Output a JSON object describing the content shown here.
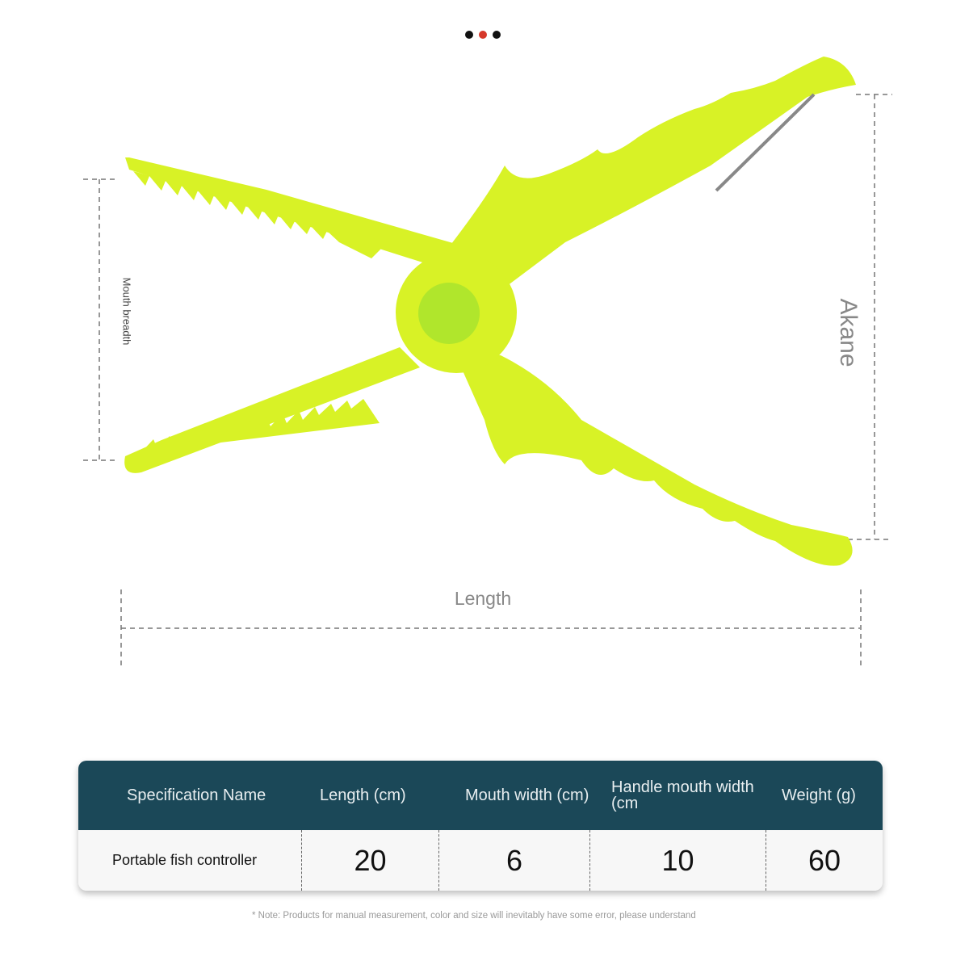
{
  "carousel": {
    "dots": 3,
    "active_index": 1,
    "active_color": "#d6382a"
  },
  "product": {
    "color": "#d8f226",
    "center_color": "#9be02a"
  },
  "dimensions": {
    "mouth_label": "Mouth breadth",
    "right_label": "Akane",
    "length_label": "Length"
  },
  "table": {
    "header_color": "#1b4858",
    "headers": [
      "Specification Name",
      "Length (cm)",
      "Mouth width (cm)",
      "Handle mouth width (cm",
      "Weight (g)"
    ],
    "rows": [
      [
        "Portable fish controller",
        "20",
        "6",
        "10",
        "60"
      ]
    ]
  },
  "note": "* Note: Products for manual measurement, color and size will inevitably have some error, please understand"
}
